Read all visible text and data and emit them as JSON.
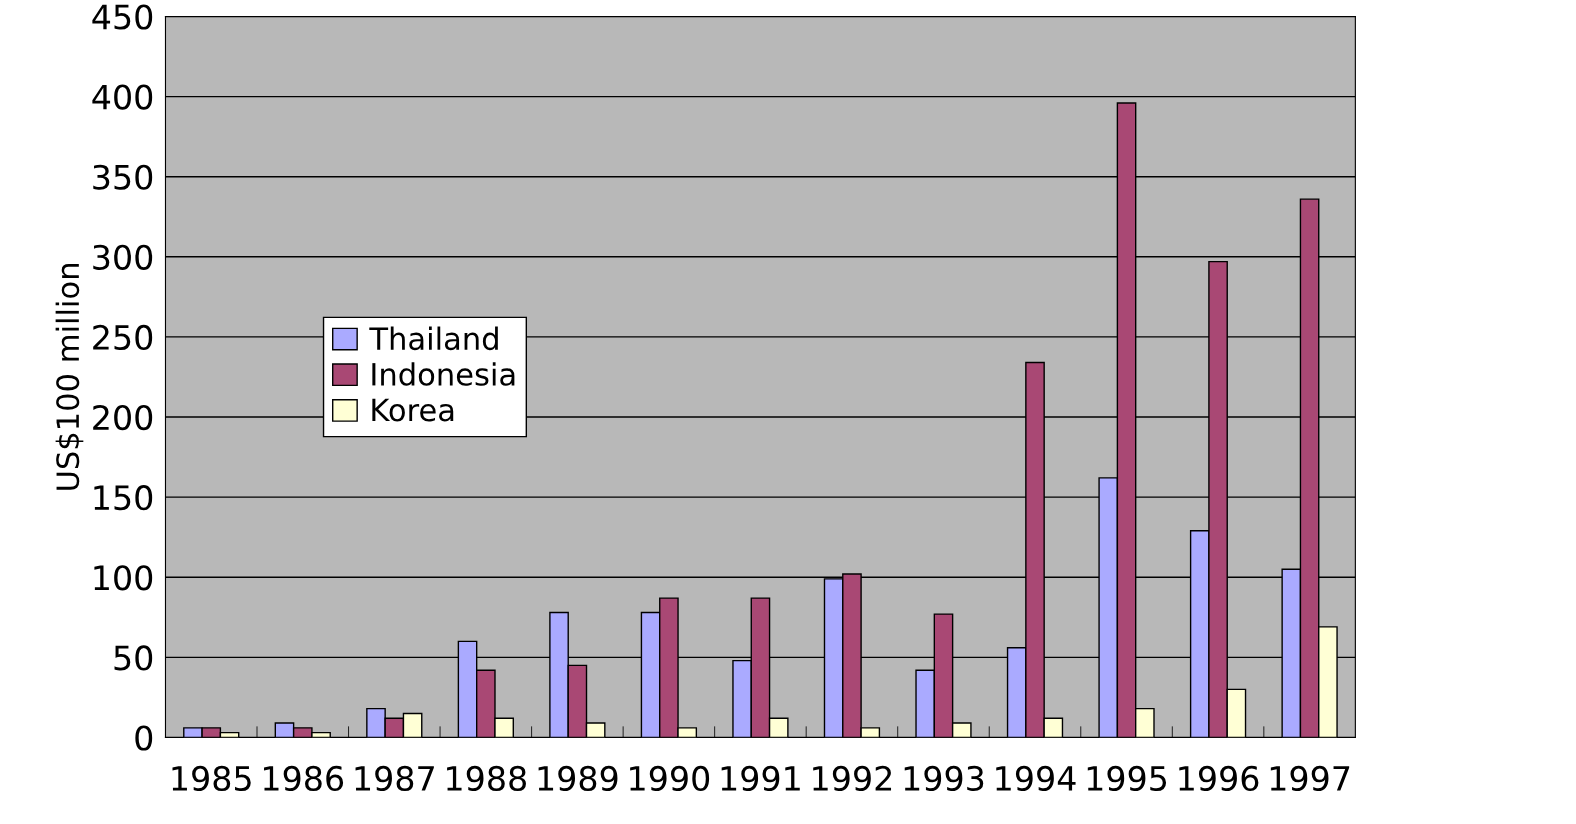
{
  "chart_data": {
    "type": "bar",
    "ylabel": "US$100 million",
    "categories": [
      "1985",
      "1986",
      "1987",
      "1988",
      "1989",
      "1990",
      "1991",
      "1992",
      "1993",
      "1994",
      "1995",
      "1996",
      "1997"
    ],
    "series": [
      {
        "name": "Thailand",
        "color": "#aaaaff",
        "values": [
          6,
          9,
          18,
          60,
          78,
          78,
          48,
          99,
          42,
          56,
          162,
          129,
          105
        ]
      },
      {
        "name": "Indonesia",
        "color": "#a94874",
        "values": [
          6,
          6,
          12,
          42,
          45,
          87,
          87,
          102,
          77,
          234,
          396,
          297,
          336
        ]
      },
      {
        "name": "Korea",
        "color": "#ffffd5",
        "values": [
          3,
          3,
          15,
          12,
          9,
          6,
          12,
          6,
          9,
          12,
          18,
          30,
          69
        ]
      }
    ],
    "ylim": [
      0,
      450
    ],
    "yticks": [
      0,
      50,
      100,
      150,
      200,
      250,
      300,
      350,
      400,
      450
    ],
    "grid": "y",
    "legend": "left"
  }
}
